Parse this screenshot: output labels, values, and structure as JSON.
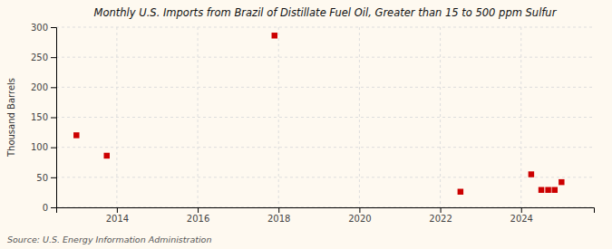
{
  "chart_data": {
    "type": "scatter",
    "title": "Monthly U.S. Imports from Brazil of Distillate Fuel Oil, Greater than 15 to 500 ppm Sulfur",
    "ylabel": "Thousand Barrels",
    "annotation": "Source: U.S. Energy Information Administration",
    "x": [
      2013.0,
      2013.75,
      2017.9,
      2022.5,
      2024.25,
      2024.5,
      2024.67,
      2024.83,
      2025.0
    ],
    "y": [
      120,
      86,
      286,
      26,
      55,
      29,
      29,
      29,
      42
    ],
    "color": "#cc0000",
    "marker": "square",
    "xlim": [
      2012.5,
      2025.8
    ],
    "ylim": [
      0,
      300
    ],
    "xticks": [
      2014,
      2016,
      2018,
      2020,
      2022,
      2024
    ],
    "yticks": [
      0,
      50,
      100,
      150,
      200,
      250,
      300
    ],
    "grid": true
  }
}
